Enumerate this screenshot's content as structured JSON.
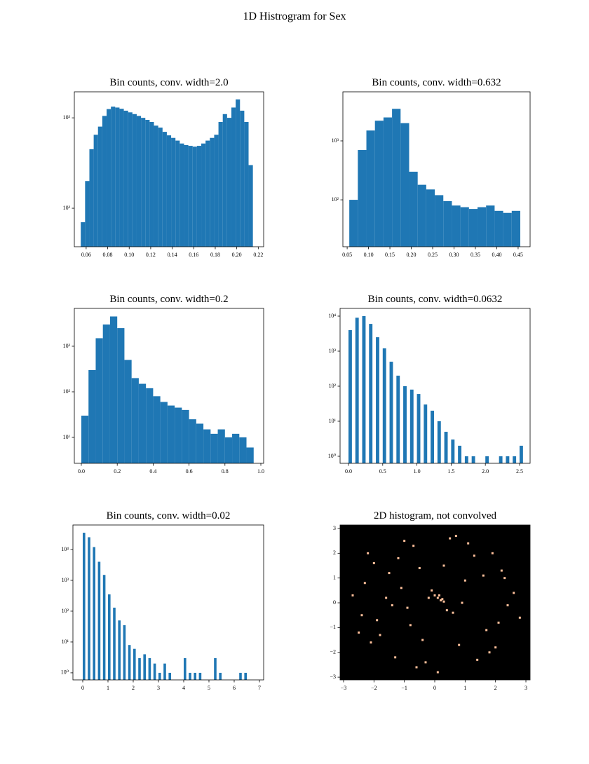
{
  "title": "1D Histrogram for Sex",
  "chart_data": [
    {
      "type": "histogram",
      "title": "Bin counts, conv. width=2.0",
      "color": "#1f77b4",
      "log_y": true,
      "bins": [
        0.055,
        0.059,
        0.063,
        0.067,
        0.071,
        0.075,
        0.079,
        0.083,
        0.087,
        0.091,
        0.095,
        0.099,
        0.103,
        0.107,
        0.111,
        0.115,
        0.119,
        0.123,
        0.127,
        0.131,
        0.135,
        0.139,
        0.143,
        0.147,
        0.151,
        0.155,
        0.159,
        0.163,
        0.167,
        0.171,
        0.175,
        0.179,
        0.183,
        0.187,
        0.191,
        0.195,
        0.199,
        0.203,
        0.207,
        0.211,
        0.215
      ],
      "counts": [
        70,
        200,
        450,
        650,
        800,
        1050,
        1250,
        1330,
        1300,
        1260,
        1200,
        1150,
        1100,
        1050,
        1000,
        950,
        900,
        820,
        780,
        700,
        640,
        600,
        560,
        520,
        500,
        490,
        480,
        490,
        520,
        560,
        600,
        650,
        900,
        1100,
        1000,
        1300,
        1600,
        1200,
        900,
        300
      ],
      "xlim": [
        0.049,
        0.225
      ],
      "ylim": [
        37.5,
        1940
      ],
      "xticks": [
        0.06,
        0.08,
        {
          "value": 0.1,
          "label": "0.10"
        },
        0.12,
        0.14,
        0.16,
        0.18,
        {
          "value": 0.2,
          "label": "0.20"
        },
        0.22
      ],
      "yticks": [
        {
          "value": 100,
          "label": "10²"
        },
        {
          "value": 1000,
          "label": "10³"
        }
      ]
    },
    {
      "type": "histogram",
      "title": "Bin counts, conv. width=0.632",
      "color": "#1f77b4",
      "log_y": true,
      "bins": [
        0.055,
        0.075,
        0.095,
        0.115,
        0.135,
        0.155,
        0.175,
        0.195,
        0.215,
        0.235,
        0.255,
        0.275,
        0.295,
        0.315,
        0.335,
        0.355,
        0.375,
        0.395,
        0.415,
        0.435,
        0.455
      ],
      "counts": [
        100,
        700,
        1500,
        2200,
        2500,
        3500,
        2000,
        300,
        180,
        150,
        120,
        95,
        80,
        75,
        70,
        75,
        80,
        65,
        60,
        65
      ],
      "xlim": [
        0.04,
        0.478
      ],
      "ylim": [
        16,
        6800
      ],
      "xticks": [
        0.05,
        {
          "value": 0.1,
          "label": "0.10"
        },
        0.15,
        {
          "value": 0.2,
          "label": "0.20"
        },
        0.25,
        {
          "value": 0.3,
          "label": "0.30"
        },
        0.35,
        {
          "value": 0.4,
          "label": "0.40"
        },
        0.45
      ],
      "yticks": [
        {
          "value": 100,
          "label": "10²"
        },
        {
          "value": 1000,
          "label": "10³"
        }
      ]
    },
    {
      "type": "histogram",
      "title": "Bin counts, conv. width=0.2",
      "color": "#1f77b4",
      "log_y": true,
      "bins": [
        0,
        0.04,
        0.08,
        0.12,
        0.16,
        0.2,
        0.24,
        0.28,
        0.32,
        0.36,
        0.4,
        0.44,
        0.48,
        0.52,
        0.56,
        0.6,
        0.64,
        0.68,
        0.72,
        0.76,
        0.8,
        0.84,
        0.88,
        0.92,
        0.96
      ],
      "counts": [
        30,
        300,
        1500,
        3000,
        4500,
        2500,
        500,
        200,
        150,
        120,
        80,
        60,
        50,
        45,
        40,
        25,
        20,
        15,
        12,
        15,
        10,
        12,
        10,
        6
      ],
      "xlim": [
        -0.039,
        1.0156
      ],
      "ylim": [
        2.7,
        6760
      ],
      "xticks": [
        {
          "value": 0,
          "label": "0.0"
        },
        0.2,
        0.4,
        0.6,
        0.8,
        {
          "value": 1,
          "label": "1.0"
        }
      ],
      "yticks": [
        {
          "value": 10,
          "label": "10¹"
        },
        {
          "value": 100,
          "label": "10²"
        },
        {
          "value": 1000,
          "label": "10³"
        }
      ]
    },
    {
      "type": "histogram",
      "title": "Bin counts, conv. width=0.0632",
      "color": "#1f77b4",
      "log_y": true,
      "bins": [
        0,
        0.05,
        0.1,
        0.15,
        0.2,
        0.25,
        0.3,
        0.35,
        0.4,
        0.45,
        0.5,
        0.55,
        0.6,
        0.65,
        0.7,
        0.75,
        0.8,
        0.85,
        0.9,
        0.95,
        1,
        1.05,
        1.1,
        1.15,
        1.2,
        1.25,
        1.3,
        1.35,
        1.4,
        1.45,
        1.5,
        1.55,
        1.6,
        1.65,
        1.7,
        1.75,
        1.8,
        1.85,
        1.9,
        1.95,
        2,
        2.05,
        2.1,
        2.15,
        2.2,
        2.25,
        2.3,
        2.35,
        2.4,
        2.45,
        2.5,
        2.55
      ],
      "counts": [
        4000,
        0,
        9000,
        0,
        10000,
        0,
        6000,
        0,
        2500,
        0,
        1200,
        0,
        500,
        0,
        200,
        0,
        100,
        0,
        80,
        0,
        60,
        0,
        30,
        0,
        20,
        0,
        10,
        0,
        5,
        0,
        3,
        0,
        2,
        0,
        1,
        0,
        1,
        0,
        0,
        0,
        1,
        0,
        0,
        0,
        1,
        0,
        1,
        0,
        1,
        0,
        2
      ],
      "xlim": [
        -0.123,
        2.654
      ],
      "ylim": [
        0.63,
        16600
      ],
      "xticks": [
        {
          "value": 0,
          "label": "0.0"
        },
        0.5,
        {
          "value": 1,
          "label": "1.0"
        },
        1.5,
        {
          "value": 2,
          "label": "2.0"
        },
        2.5
      ],
      "yticks": [
        {
          "value": 1,
          "label": "10⁰"
        },
        {
          "value": 10,
          "label": "10¹"
        },
        {
          "value": 100,
          "label": "10²"
        },
        {
          "value": 1000,
          "label": "10³"
        },
        {
          "value": 10000,
          "label": "10⁴"
        }
      ]
    },
    {
      "type": "histogram",
      "title": "Bin counts, conv. width=0.02",
      "color": "#1f77b4",
      "log_y": true,
      "bins": [
        0,
        0.1,
        0.2,
        0.3,
        0.4,
        0.5,
        0.6,
        0.7,
        0.8,
        0.9,
        1,
        1.1,
        1.2,
        1.3,
        1.4,
        1.5,
        1.6,
        1.7,
        1.8,
        1.9,
        2,
        2.1,
        2.2,
        2.3,
        2.4,
        2.5,
        2.6,
        2.7,
        2.8,
        2.9,
        3,
        3.1,
        3.2,
        3.3,
        3.4,
        3.5,
        3.6,
        3.7,
        3.8,
        3.9,
        4,
        4.1,
        4.2,
        4.3,
        4.4,
        4.5,
        4.6,
        4.7,
        4.8,
        4.9,
        5,
        5.1,
        5.2,
        5.3,
        5.4,
        5.5,
        5.6,
        5.7,
        5.8,
        5.9,
        6,
        6.1,
        6.2,
        6.3,
        6.4,
        6.5,
        6.6,
        6.7,
        6.8,
        6.9,
        7
      ],
      "counts": [
        35000,
        0,
        25000,
        0,
        12000,
        0,
        4000,
        0,
        1500,
        0,
        350,
        0,
        130,
        0,
        50,
        0,
        35,
        0,
        8,
        0,
        6,
        0,
        3,
        0,
        4,
        0,
        3,
        0,
        2,
        0,
        1,
        0,
        2,
        0,
        1,
        0,
        0,
        0,
        0,
        0,
        3,
        0,
        1,
        0,
        1,
        0,
        1,
        0,
        0,
        0,
        0,
        0,
        3,
        0,
        1,
        0,
        0,
        0,
        0,
        0,
        0,
        0,
        1,
        0,
        1,
        0,
        0,
        0,
        0,
        0
      ],
      "xlim": [
        -0.389,
        7.167
      ],
      "ylim": [
        0.59,
        62400
      ],
      "xticks": [
        0,
        1,
        2,
        3,
        4,
        5,
        6,
        7
      ],
      "yticks": [
        {
          "value": 1,
          "label": "10⁰"
        },
        {
          "value": 10,
          "label": "10¹"
        },
        {
          "value": 100,
          "label": "10²"
        },
        {
          "value": 1000,
          "label": "10³"
        },
        {
          "value": 10000,
          "label": "10⁴"
        }
      ]
    },
    {
      "type": "hist2d",
      "title": "2D histogram, not convolved",
      "color": "#fdbf9a",
      "background": "#000000",
      "x": [
        0.2,
        -1.5,
        2.1,
        -0.7,
        1.3,
        -2.4,
        0.8,
        -1.1,
        2.6,
        -0.3,
        1.7,
        -2.0,
        0.5,
        -1.8,
        2.3,
        -0.9,
        1.0,
        -2.7,
        0.1,
        -0.5,
        1.9,
        -1.3,
        2.8,
        -0.1,
        0.6,
        -2.2,
        1.4,
        -0.8,
        2.0,
        -1.6,
        0.3,
        -2.5,
        1.1,
        -0.4,
        2.4,
        -1.0,
        0.9,
        -1.9,
        1.6,
        -0.2,
        0.4,
        -1.2,
        2.2,
        -2.1,
        0.7,
        -0.6,
        1.8,
        -2.3,
        0.0,
        -1.4,
        0.1,
        0.2,
        0.3,
        0.15,
        0.25
      ],
      "y": [
        0.1,
        1.2,
        -0.8,
        2.3,
        1.9,
        -0.5,
        -1.7,
        0.6,
        0.4,
        -2.4,
        -1.1,
        1.6,
        2.6,
        -1.3,
        1.0,
        -0.2,
        0.9,
        0.3,
        -2.8,
        1.4,
        2.0,
        -2.2,
        -0.6,
        0.5,
        -0.4,
        2.0,
        -2.3,
        -0.9,
        -1.8,
        0.2,
        1.5,
        -1.2,
        2.4,
        -1.5,
        -0.1,
        2.5,
        0.0,
        -0.7,
        1.1,
        0.2,
        -0.3,
        1.8,
        1.3,
        -1.6,
        2.7,
        -2.6,
        -2.0,
        0.8,
        0.3,
        -0.1,
        0.2,
        0.1,
        0.05,
        0.3,
        0.15
      ],
      "xlim": [
        -3.115,
        3.138
      ],
      "ylim": [
        -3.11,
        3.14
      ],
      "xticks": [
        {
          "value": -3,
          "label": "−3"
        },
        {
          "value": -2,
          "label": "−2"
        },
        {
          "value": -1,
          "label": "−1"
        },
        0,
        1,
        2,
        3
      ],
      "yticks": [
        {
          "value": -3,
          "label": "−3"
        },
        {
          "value": -2,
          "label": "−2"
        },
        {
          "value": -1,
          "label": "−1"
        },
        0,
        1,
        2,
        3
      ]
    }
  ]
}
